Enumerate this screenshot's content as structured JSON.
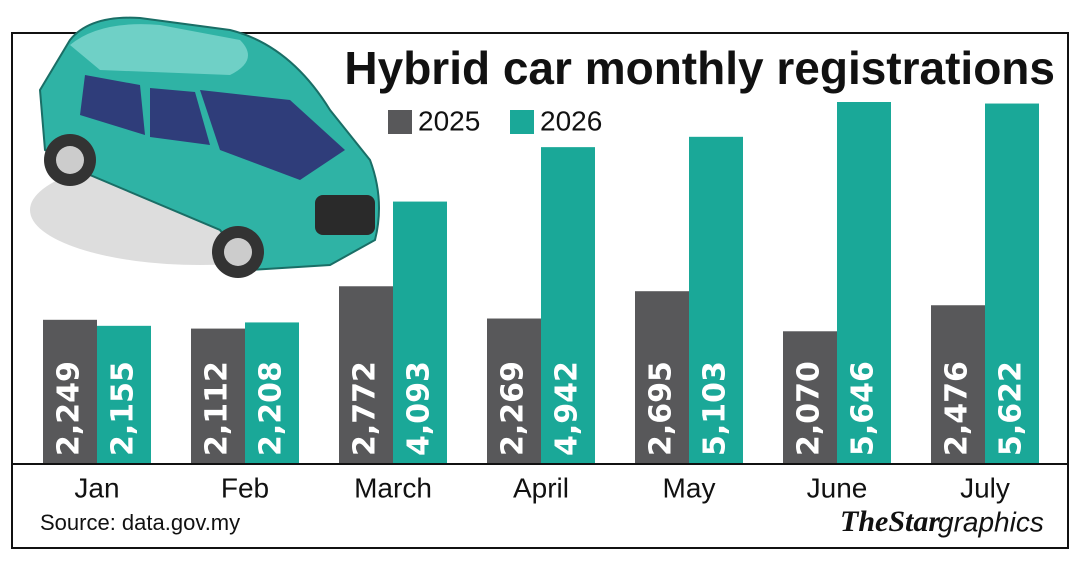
{
  "chart_data": {
    "type": "bar",
    "title": "Hybrid car monthly registrations",
    "categories": [
      "Jan",
      "Feb",
      "March",
      "April",
      "May",
      "June",
      "July"
    ],
    "series": [
      {
        "name": "2025",
        "color": "#58585a",
        "values": [
          2249,
          2112,
          2772,
          2269,
          2695,
          2070,
          2476
        ],
        "value_labels": [
          "2,249",
          "2,112",
          "2,772",
          "2,269",
          "2,695",
          "2,070",
          "2,476"
        ]
      },
      {
        "name": "2026",
        "color": "#1aa898",
        "values": [
          2155,
          2208,
          4093,
          4942,
          5103,
          5646,
          5622
        ],
        "value_labels": [
          "2,155",
          "2,208",
          "4,093",
          "4,942",
          "5,103",
          "5,646",
          "5,622"
        ]
      }
    ],
    "source": "Source: data.gov.my",
    "logo_brand": "TheStar",
    "logo_suffix": "graphics"
  }
}
